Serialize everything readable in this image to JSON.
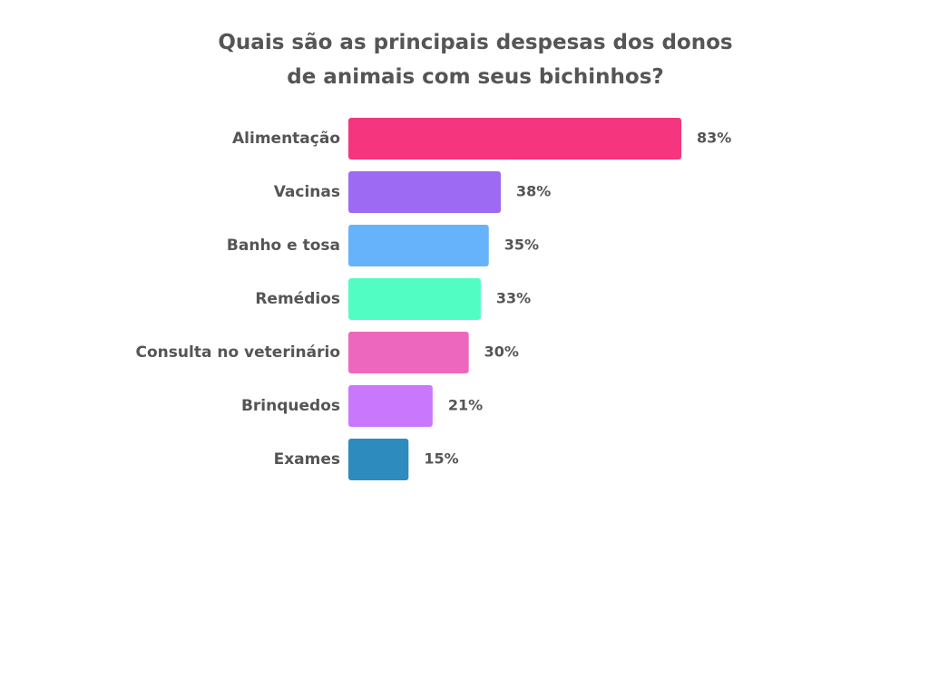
{
  "chart_data": {
    "type": "bar",
    "orientation": "horizontal",
    "title": [
      "Quais são as principais despesas dos donos",
      "de animais com seus bichinhos?"
    ],
    "categories": [
      "Alimentação",
      "Vacinas",
      "Banho e tosa",
      "Remédios",
      "Consulta no veterinário",
      "Brinquedos",
      "Exames"
    ],
    "values": [
      83,
      38,
      35,
      33,
      30,
      21,
      15
    ],
    "value_labels": [
      "83%",
      "38%",
      "35%",
      "33%",
      "30%",
      "21%",
      "15%"
    ],
    "colors": [
      "#F5357E",
      "#9D6AF3",
      "#66B3FB",
      "#52FDC3",
      "#EE67BE",
      "#C977FC",
      "#2E8BBD"
    ],
    "unit": "%",
    "xlim": [
      0,
      100
    ],
    "grid": false,
    "legend": "none"
  }
}
